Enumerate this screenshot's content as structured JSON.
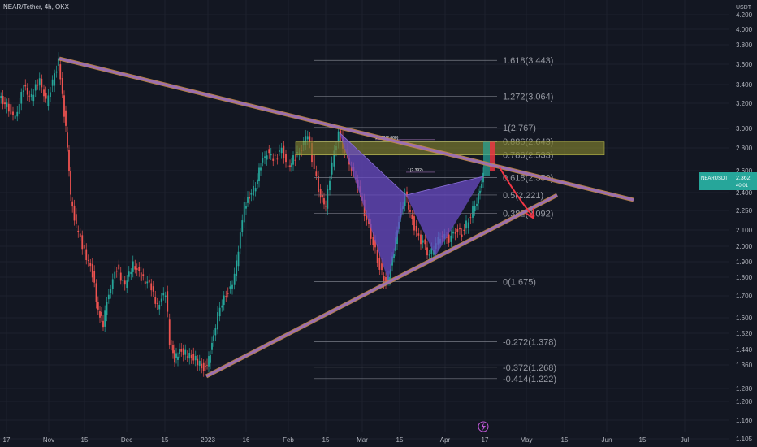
{
  "header": {
    "symbol": "NEAR/Tether, 4h, OKX"
  },
  "axis": {
    "currency": "USDT"
  },
  "price_tag": {
    "ticker": "NEARUSDT",
    "price": "2.362",
    "countdown": "40:01",
    "color": "#26a69a"
  },
  "colors": {
    "background": "#131722",
    "up_candle": "#26a69a",
    "down_candle": "#ef5350",
    "trendline": "#9c6fb0",
    "trendline_under": "#c38a4a",
    "pattern_fill": "#6a4bc4",
    "zone_fill": "#7a7a2e",
    "arrow": "#f23645"
  },
  "chart_data": {
    "type": "candlestick",
    "title": "NEAR/Tether, 4h, OKX",
    "y_scale": "log",
    "ylim": [
      1.05,
      4.2
    ],
    "y_ticks": [
      "4.200",
      "4.000",
      "3.800",
      "3.600",
      "3.400",
      "3.200",
      "3.000",
      "2.800",
      "2.600",
      "2.400",
      "2.250",
      "2.100",
      "2.000",
      "1.900",
      "1.800",
      "1.700",
      "1.600",
      "1.520",
      "1.440",
      "1.360",
      "1.280",
      "1.200",
      "1.160",
      "1.105",
      "1.053"
    ],
    "x_ticks": [
      "17",
      "Nov",
      "15",
      "Dec",
      "15",
      "2023",
      "16",
      "Feb",
      "15",
      "Mar",
      "15",
      "Apr",
      "17",
      "May",
      "15",
      "Jun",
      "15",
      "Jul"
    ],
    "fib_levels": [
      {
        "label": "1.618(3.443)",
        "value": 3.443
      },
      {
        "label": "1.272(3.064)",
        "value": 3.064
      },
      {
        "label": "1(2.767)",
        "value": 2.767
      },
      {
        "label": "0.886(2.643)",
        "value": 2.643
      },
      {
        "label": "0.786(2.533)",
        "value": 2.533
      },
      {
        "label": "0.618(2.350)",
        "value": 2.35
      },
      {
        "label": "0.5(2.221)",
        "value": 2.221
      },
      {
        "label": "0.382(2.092)",
        "value": 2.092
      },
      {
        "label": "0(1.675)",
        "value": 1.675
      },
      {
        "label": "-0.272(1.378)",
        "value": 1.378
      },
      {
        "label": "-0.372(1.268)",
        "value": 1.268
      },
      {
        "label": "-0.414(1.222)",
        "value": 1.222
      }
    ],
    "pattern_labels": [
      "1.382(2.660)",
      "1(2.392)"
    ],
    "current_price": 2.362
  }
}
